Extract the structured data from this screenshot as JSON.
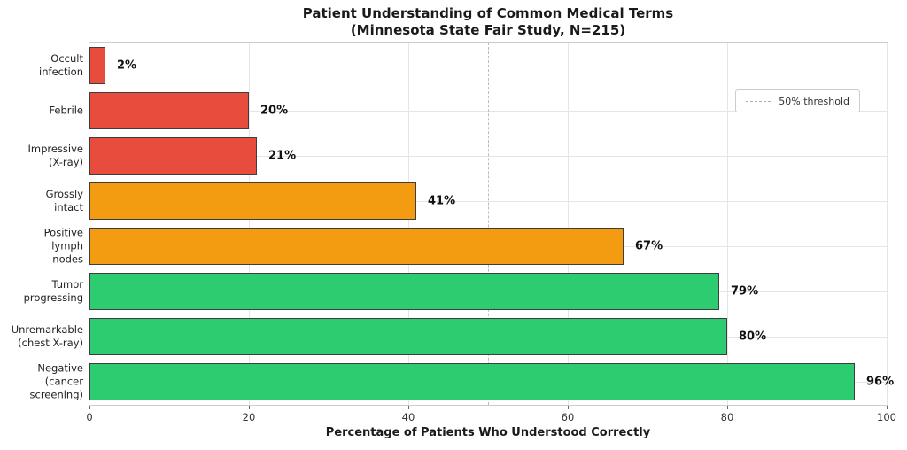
{
  "title": "Patient Understanding of Common Medical Terms\n(Minnesota State Fair Study, N=215)",
  "x_axis_title": "Percentage of Patients Who Understood Correctly",
  "legend": {
    "threshold_label": "50% threshold"
  },
  "chart_data": {
    "type": "bar",
    "orientation": "horizontal",
    "categories": [
      "Occult\ninfection",
      "Febrile",
      "Impressive\n(X-ray)",
      "Grossly\nintact",
      "Positive\nlymph\nnodes",
      "Tumor\nprogressing",
      "Unremarkable\n(chest X-ray)",
      "Negative\n(cancer\nscreening)"
    ],
    "values": [
      2,
      20,
      21,
      41,
      67,
      79,
      80,
      96
    ],
    "value_labels": [
      "2%",
      "20%",
      "21%",
      "41%",
      "67%",
      "79%",
      "80%",
      "96%"
    ],
    "bar_colors": [
      "#e74c3c",
      "#e74c3c",
      "#e74c3c",
      "#f39c12",
      "#f39c12",
      "#2ecc71",
      "#2ecc71",
      "#2ecc71"
    ],
    "bar_edge_color": "#3d3d3d",
    "title": "Patient Understanding of Common Medical Terms\n(Minnesota State Fair Study, N=215)",
    "xlabel": "Percentage of Patients Who Understood Correctly",
    "ylabel": "",
    "xlim": [
      0,
      100
    ],
    "xticks": [
      0,
      20,
      40,
      60,
      80,
      100
    ],
    "grid": true,
    "threshold": {
      "value": 50,
      "label": "50% threshold",
      "style": "dashed",
      "color": "#bbbbbb"
    },
    "legend_position": "upper right"
  }
}
